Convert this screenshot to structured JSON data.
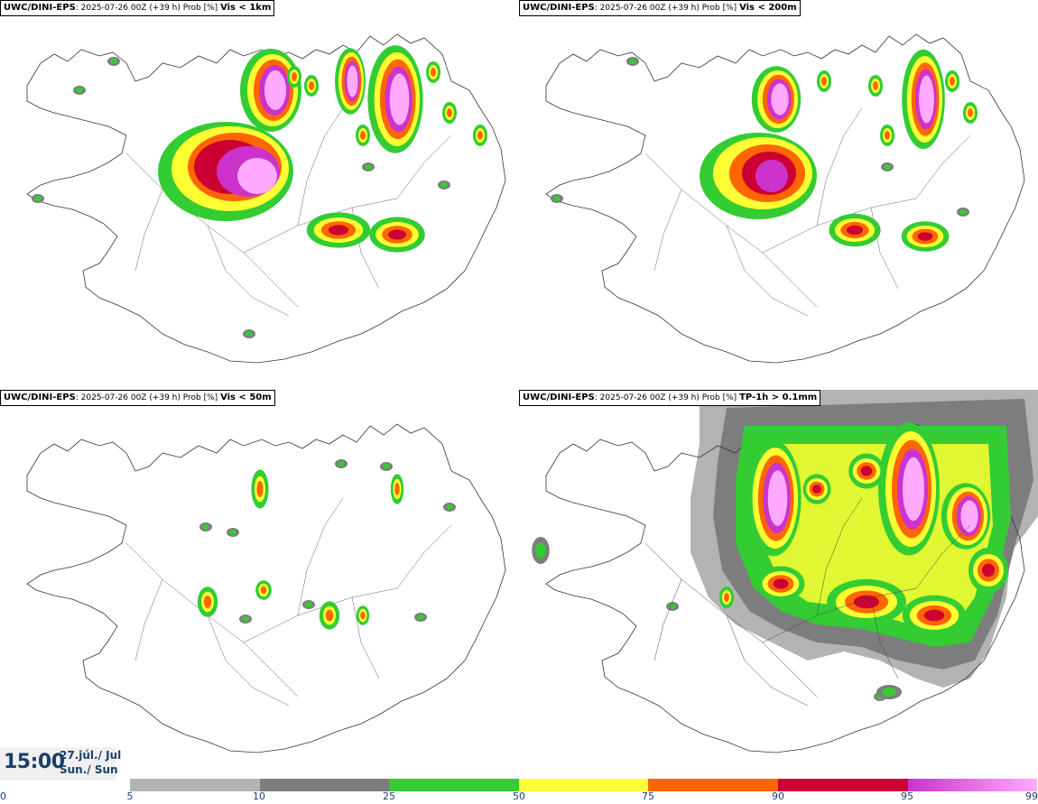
{
  "panels": [
    {
      "model": "UWC/DINI-EPS",
      "meta": "2025-07-26 00Z (+39 h) Prob [%]",
      "variable": "Vis < 1km"
    },
    {
      "model": "UWC/DINI-EPS",
      "meta": "2025-07-26 00Z (+39 h) Prob [%]",
      "variable": "Vis < 200m"
    },
    {
      "model": "UWC/DINI-EPS",
      "meta": "2025-07-26 00Z (+39 h) Prob [%]",
      "variable": "Vis < 50m"
    },
    {
      "model": "UWC/DINI-EPS",
      "meta": "2025-07-26 00Z (+39 h) Prob [%]",
      "variable": "TP-1h > 0.1mm"
    }
  ],
  "valid": {
    "time": "15:00",
    "date_line1": "27.júl./ Jul",
    "date_line2": "Sun./ Sun"
  },
  "colorbar": {
    "ticks": [
      "0",
      "5",
      "10",
      "25",
      "50",
      "75",
      "90",
      "95",
      "99"
    ],
    "colors": {
      "c5": "#b3b3b3",
      "c10": "#7d7d7d",
      "c25": "#33cc33",
      "c50": "#ffff33",
      "c75": "#ff6600",
      "c90": "#cc0033",
      "c95": "#cc33cc",
      "c99": "#ffaaff"
    }
  }
}
